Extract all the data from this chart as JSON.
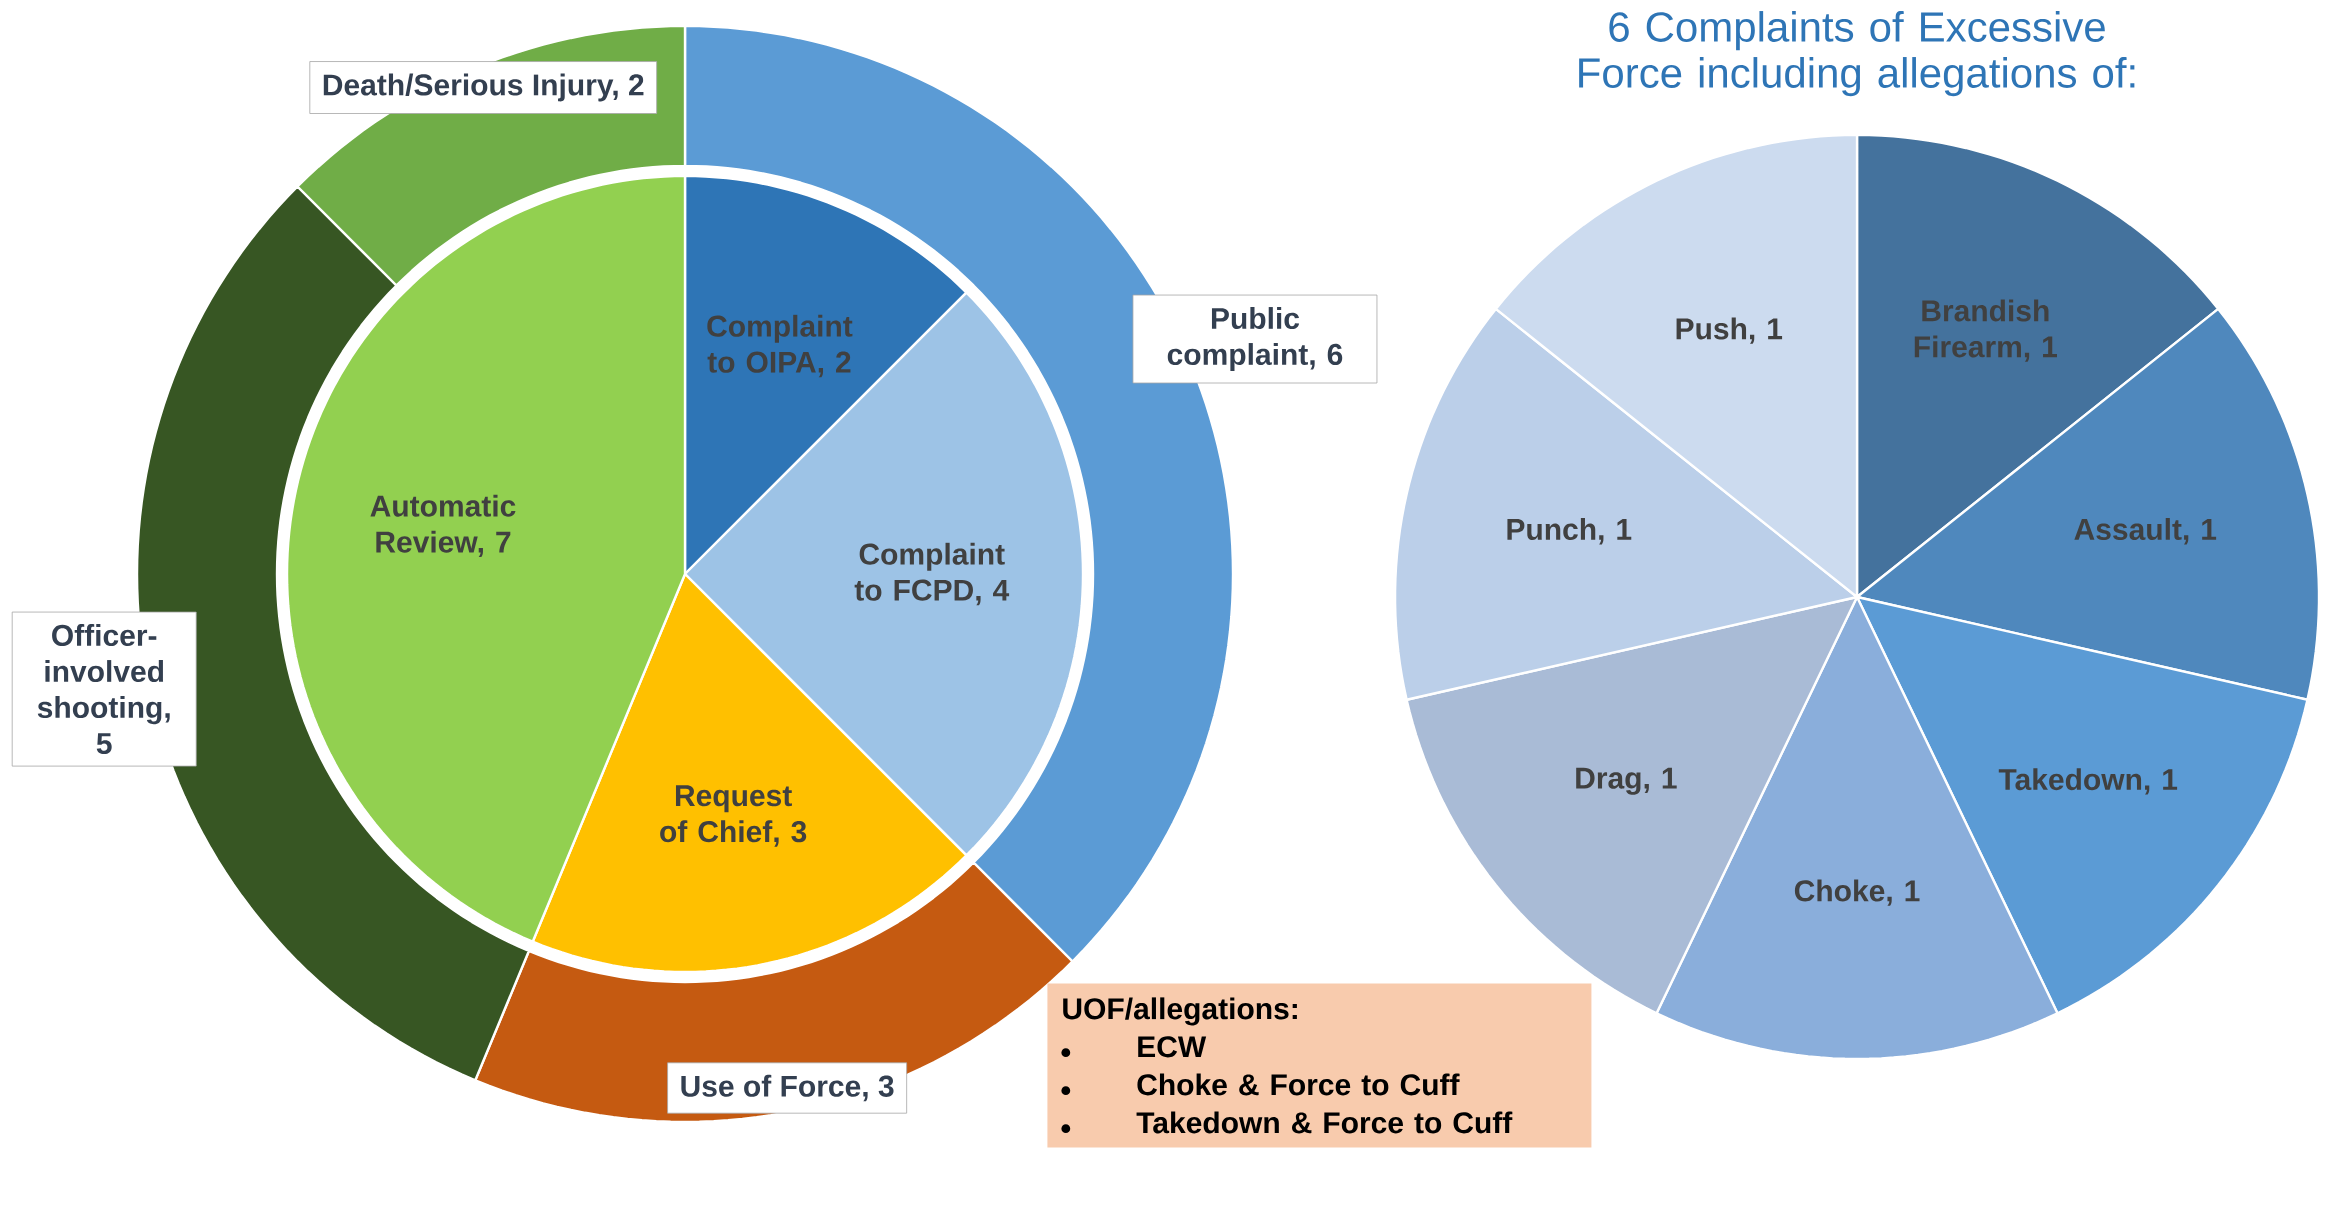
{
  "chart_data": [
    {
      "type": "pie",
      "categories": [
        "Complaint to OIPA, 2",
        "Complaint to FCPD, 4",
        "Request of Chief, 3",
        "Automatic Review, 7"
      ],
      "values": [
        2,
        4,
        3,
        7
      ],
      "colors": [
        "#2e75b6",
        "#9dc3e6",
        "#ffc000",
        "#92d050"
      ]
    },
    {
      "type": "donut",
      "categories": [
        "Public complaint, 6",
        "Use of Force, 3",
        "Officer-involved shooting, 5",
        "Death/Serious Injury, 2"
      ],
      "values": [
        6,
        3,
        5,
        2
      ],
      "colors": [
        "#5b9bd5",
        "#c55a11",
        "#375623",
        "#70ad47"
      ],
      "annotations": [
        "UOF/allegations:",
        "ECW",
        "Choke & Force to Cuff",
        "Takedown & Force to Cuff"
      ]
    },
    {
      "type": "pie",
      "title": "6 Complaints of Excessive Force including allegations of:",
      "categories": [
        "Brandish Firearm, 1",
        "Assault, 1",
        "Takedown, 1",
        "Choke, 1",
        "Drag, 1",
        "Punch, 1",
        "Push, 1"
      ],
      "values": [
        1,
        1,
        1,
        1,
        1,
        1,
        1
      ],
      "colors": [
        "#44729d",
        "#4f88bd",
        "#5b9bd5",
        "#8aaedb",
        "#a9bbd6",
        "#bbcfe9",
        "#ccdbef"
      ]
    }
  ]
}
